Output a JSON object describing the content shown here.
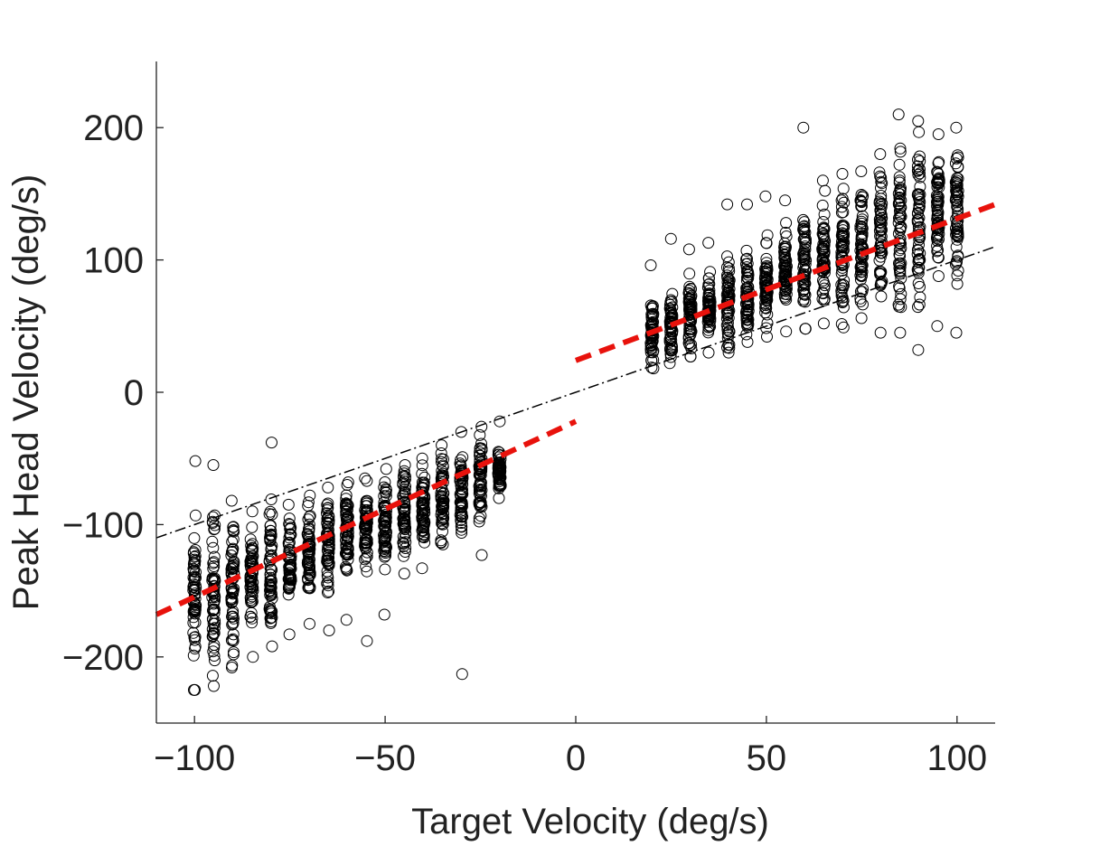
{
  "chart_data": {
    "type": "scatter",
    "xlabel": "Target Velocity (deg/s)",
    "ylabel": "Peak Head Velocity (deg/s)",
    "xlim": [
      -110,
      110
    ],
    "ylim": [
      -250,
      250
    ],
    "xticks": [
      -100,
      -50,
      0,
      50,
      100
    ],
    "yticks": [
      -200,
      -100,
      0,
      100,
      200
    ],
    "xtick_labels": [
      "−100",
      "−50",
      "0",
      "50",
      "100"
    ],
    "ytick_labels": [
      "−200",
      "−100",
      "0",
      "100",
      "200"
    ],
    "grid": false,
    "legend": "none",
    "series": [
      {
        "marker": "open-circle",
        "color": "#000000",
        "columns": [
          {
            "x": -100,
            "mean": -155,
            "min": -225,
            "max": -52
          },
          {
            "x": -95,
            "mean": -150,
            "min": -222,
            "max": -55
          },
          {
            "x": -90,
            "mean": -145,
            "min": -208,
            "max": -82
          },
          {
            "x": -85,
            "mean": -140,
            "min": -200,
            "max": -90
          },
          {
            "x": -80,
            "mean": -135,
            "min": -192,
            "max": -38
          },
          {
            "x": -75,
            "mean": -128,
            "min": -183,
            "max": -85
          },
          {
            "x": -70,
            "mean": -122,
            "min": -175,
            "max": -78
          },
          {
            "x": -65,
            "mean": -116,
            "min": -180,
            "max": -72
          },
          {
            "x": -60,
            "mean": -110,
            "min": -172,
            "max": -68
          },
          {
            "x": -55,
            "mean": -104,
            "min": -188,
            "max": -65
          },
          {
            "x": -50,
            "mean": -98,
            "min": -168,
            "max": -58
          },
          {
            "x": -45,
            "mean": -92,
            "min": -137,
            "max": -55
          },
          {
            "x": -40,
            "mean": -86,
            "min": -133,
            "max": -50
          },
          {
            "x": -35,
            "mean": -80,
            "min": -115,
            "max": -40
          },
          {
            "x": -30,
            "mean": -73,
            "min": -213,
            "max": -30
          },
          {
            "x": -25,
            "mean": -66,
            "min": -123,
            "max": -26
          },
          {
            "x": -20,
            "mean": -60,
            "min": -80,
            "max": -22
          },
          {
            "x": 20,
            "mean": 45,
            "min": 18,
            "max": 96
          },
          {
            "x": 25,
            "mean": 52,
            "min": 22,
            "max": 116
          },
          {
            "x": 30,
            "mean": 58,
            "min": 27,
            "max": 108
          },
          {
            "x": 35,
            "mean": 64,
            "min": 30,
            "max": 113
          },
          {
            "x": 40,
            "mean": 70,
            "min": 30,
            "max": 142
          },
          {
            "x": 45,
            "mean": 76,
            "min": 38,
            "max": 142
          },
          {
            "x": 50,
            "mean": 82,
            "min": 42,
            "max": 148
          },
          {
            "x": 55,
            "mean": 88,
            "min": 46,
            "max": 145
          },
          {
            "x": 60,
            "mean": 94,
            "min": 48,
            "max": 200
          },
          {
            "x": 65,
            "mean": 100,
            "min": 52,
            "max": 160
          },
          {
            "x": 70,
            "mean": 106,
            "min": 49,
            "max": 165
          },
          {
            "x": 75,
            "mean": 112,
            "min": 56,
            "max": 167
          },
          {
            "x": 80,
            "mean": 118,
            "min": 45,
            "max": 180
          },
          {
            "x": 85,
            "mean": 124,
            "min": 45,
            "max": 210
          },
          {
            "x": 90,
            "mean": 130,
            "min": 32,
            "max": 205
          },
          {
            "x": 95,
            "mean": 136,
            "min": 50,
            "max": 195
          },
          {
            "x": 100,
            "mean": 142,
            "min": 45,
            "max": 200
          }
        ]
      }
    ],
    "lines": [
      {
        "style": "dash-dot",
        "color": "#000000",
        "x": [
          -110,
          110
        ],
        "y": [
          -110,
          110
        ]
      },
      {
        "style": "dashed",
        "color": "#e8120c",
        "x": [
          -110,
          0
        ],
        "y": [
          -168,
          -22
        ]
      },
      {
        "style": "dashed",
        "color": "#e8120c",
        "x": [
          0,
          110
        ],
        "y": [
          24,
          142
        ]
      }
    ]
  }
}
